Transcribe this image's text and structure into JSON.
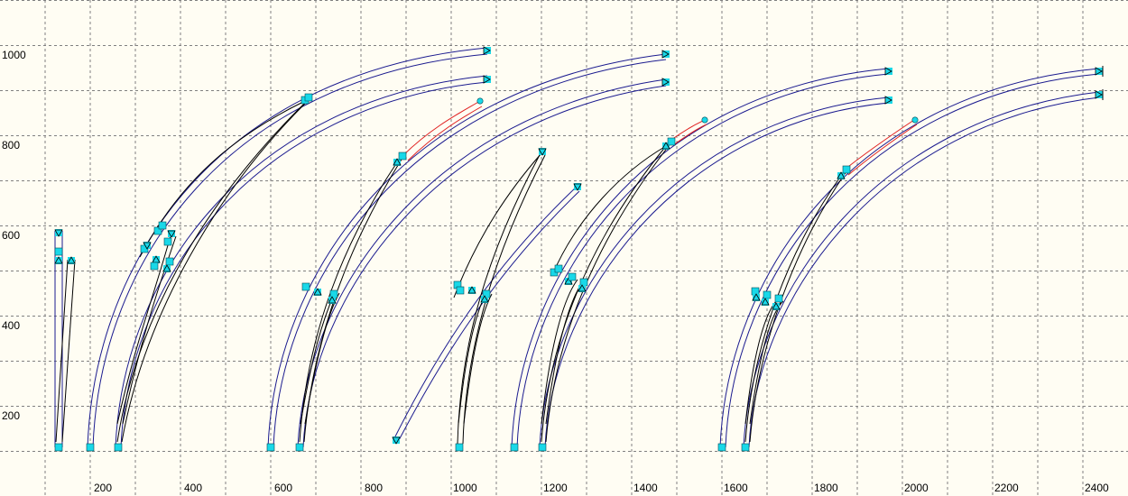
{
  "plan": {
    "x_tick_labels": [
      "200",
      "400",
      "600",
      "800",
      "1000",
      "1200",
      "1400",
      "1600",
      "1800",
      "2000",
      "2200",
      "2400"
    ],
    "y_tick_labels": [
      "200",
      "400",
      "600",
      "800",
      "1000"
    ],
    "colors": {
      "background": "#fffdf3",
      "grid": "#808080",
      "track_outline": "#1b1b8f",
      "selected_track": "#e02020",
      "turnout_line": "#000000",
      "endpoint_marker": "#19d8e8"
    },
    "track_groups_count": 5,
    "icons": [
      "endpoint-marker-icon",
      "turnout-marker-icon",
      "connector-dot-icon"
    ]
  }
}
